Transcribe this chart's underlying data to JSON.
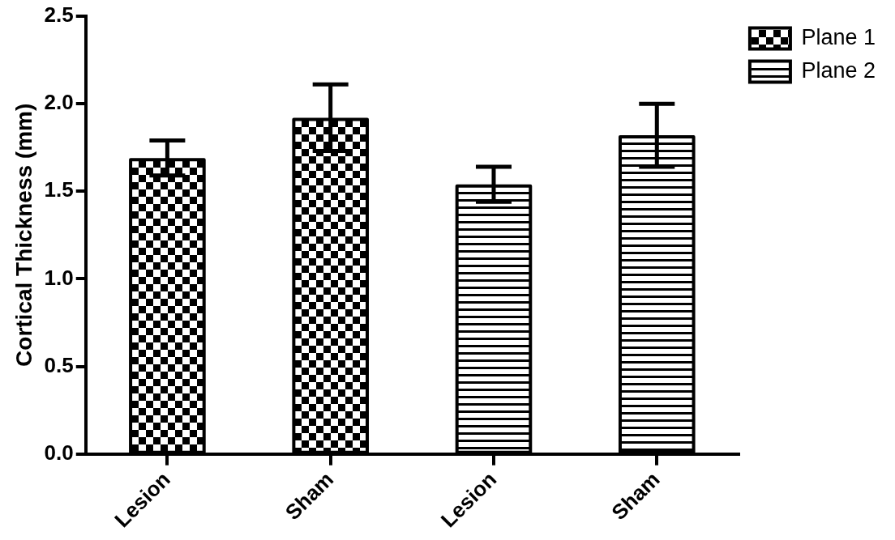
{
  "chart_data": {
    "type": "bar",
    "ylabel": "Cortical Thickness (mm)",
    "categories": [
      "Lesion",
      "Sham",
      "Lesion",
      "Sham"
    ],
    "series": [
      {
        "name": "Plane 1",
        "color": "#000000",
        "values": [
          1.69,
          1.92,
          null,
          null
        ],
        "errors": [
          0.1,
          0.19,
          null,
          null
        ]
      },
      {
        "name": "Plane 2",
        "color": "#000000",
        "values": [
          null,
          null,
          1.54,
          1.82
        ],
        "errors": [
          null,
          null,
          0.1,
          0.18
        ]
      }
    ],
    "ylim": [
      0,
      2.5
    ],
    "yticks": [
      {
        "value": 0,
        "label": "0.0"
      },
      {
        "value": 0.5,
        "label": "0.5"
      },
      {
        "value": 1,
        "label": "1.0"
      },
      {
        "value": 1.5,
        "label": "1.5"
      },
      {
        "value": 2,
        "label": "2.0"
      },
      {
        "value": 2.5,
        "label": "2.5"
      }
    ],
    "grid": false,
    "legend": "top right"
  }
}
